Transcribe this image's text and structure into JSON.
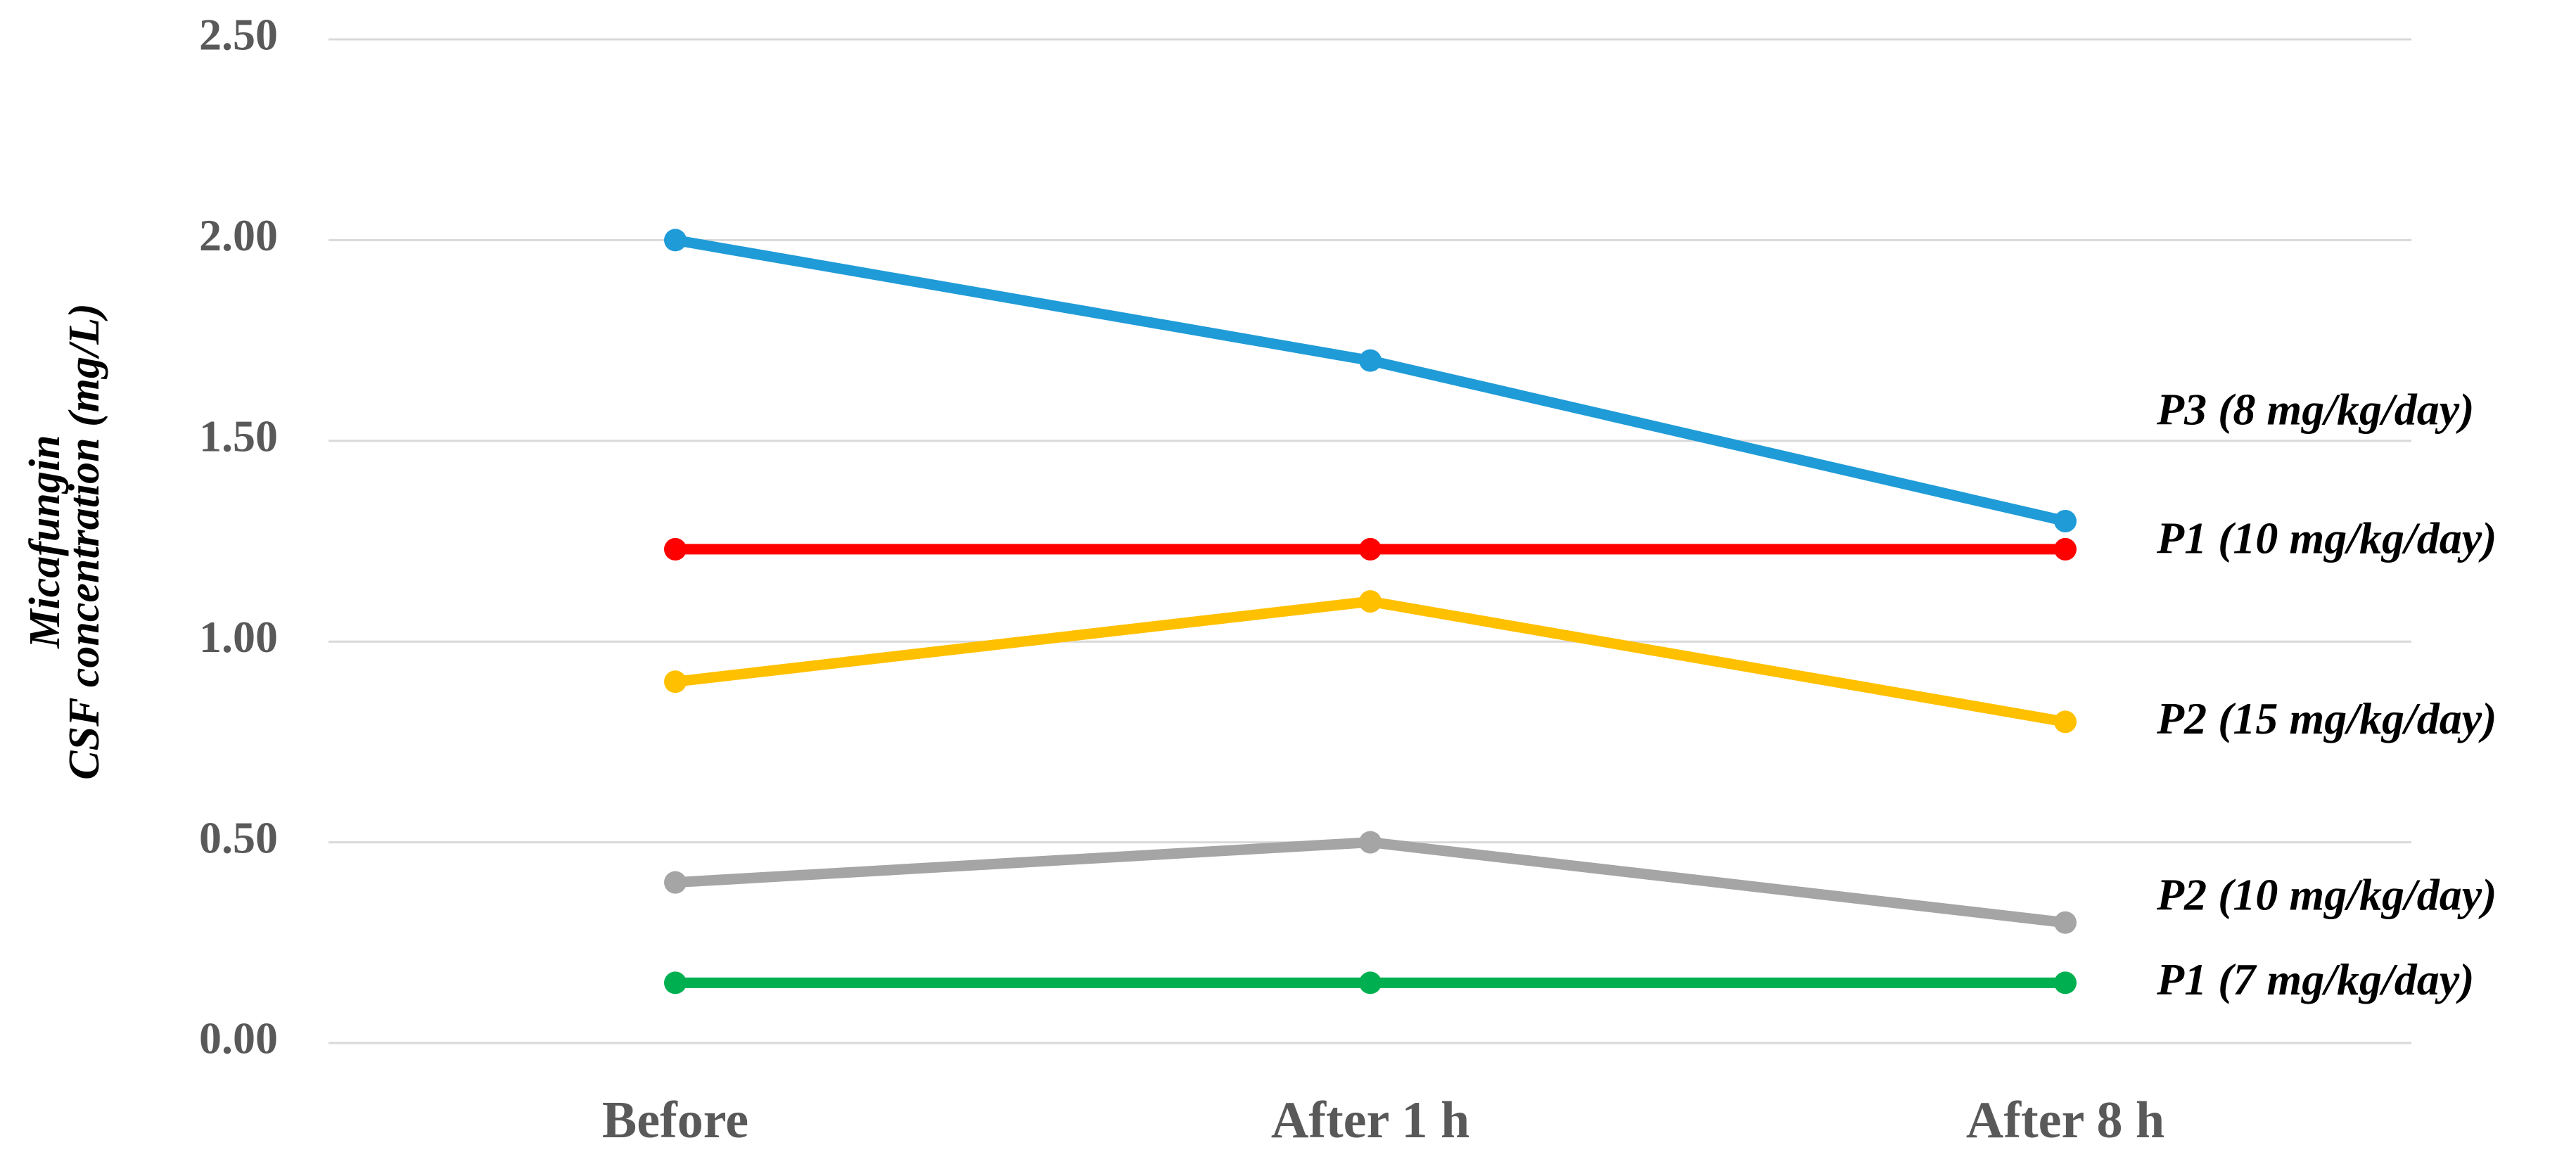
{
  "chart_data": {
    "type": "line",
    "y_label": [
      "Micafungin",
      "CSF concentration (mg/L)"
    ],
    "categories": [
      "Before",
      "After 1 h",
      "After 8 h"
    ],
    "series": [
      {
        "name": "P3 (8 mg/kg/day)",
        "color": "#1f9bd7",
        "values": [
          2.0,
          1.7,
          1.3
        ]
      },
      {
        "name": "P1 (10 mg/kg/day)",
        "color": "#ff0000",
        "values": [
          1.23,
          1.23,
          1.23
        ]
      },
      {
        "name": "P2 (15 mg/kg/day)",
        "color": "#ffc000",
        "values": [
          0.9,
          1.1,
          0.8
        ]
      },
      {
        "name": "P2 (10 mg/kg/day)",
        "color": "#a5a5a5",
        "values": [
          0.4,
          0.5,
          0.3
        ]
      },
      {
        "name": "P1 (7 mg/kg/day)",
        "color": "#00b050",
        "values": [
          0.15,
          0.15,
          0.15
        ]
      }
    ],
    "ylim": [
      0,
      2.5
    ],
    "yticks": [
      {
        "value": 0,
        "label": "0.00"
      },
      {
        "value": 0.5,
        "label": "0.50"
      },
      {
        "value": 1,
        "label": "1.00"
      },
      {
        "value": 1.5,
        "label": "1.50"
      },
      {
        "value": 2,
        "label": "2.00"
      },
      {
        "value": 2.5,
        "label": "2.50"
      }
    ],
    "grid": true
  }
}
